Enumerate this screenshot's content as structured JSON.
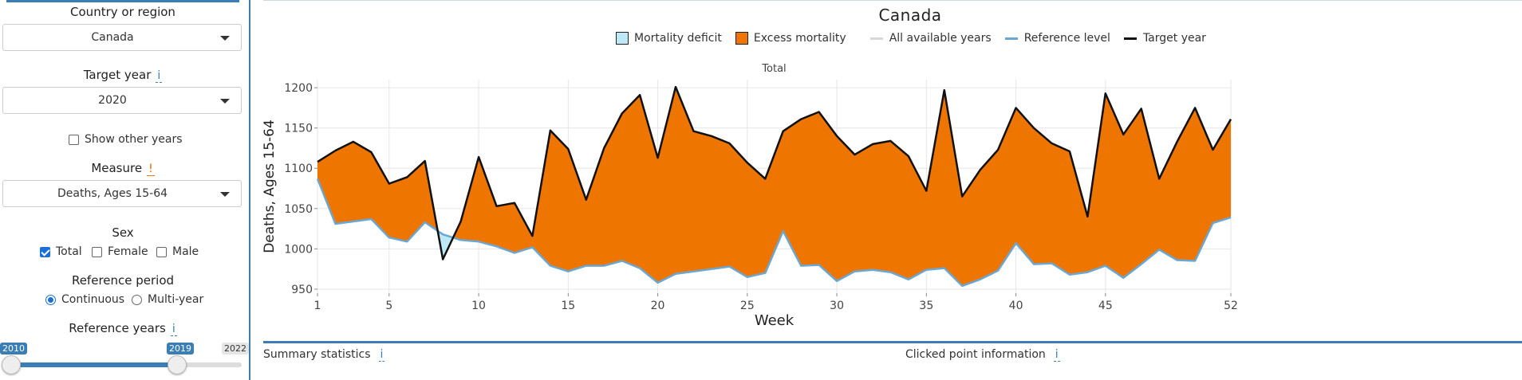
{
  "sidebar": {
    "country_label": "Country or region",
    "country_value": "Canada",
    "target_year_label": "Target year",
    "target_year_info": "i",
    "target_year_value": "2020",
    "show_other_years": "Show other years",
    "measure_label": "Measure",
    "measure_alert": "!",
    "measure_value": "Deaths, Ages 15-64",
    "sex_label": "Sex",
    "sex_options": [
      "Total",
      "Female",
      "Male"
    ],
    "sex_checked": [
      true,
      false,
      false
    ],
    "ref_period_label": "Reference period",
    "ref_period_options": [
      "Continuous",
      "Multi-year"
    ],
    "ref_period_selected": 0,
    "ref_years_label": "Reference years",
    "ref_years_info": "i",
    "ref_years_from": "2010",
    "ref_years_to": "2019",
    "ref_years_max": "2022"
  },
  "main": {
    "title": "Canada",
    "legend": {
      "deficit": "Mortality deficit",
      "excess": "Excess mortality",
      "all_years": "All available years",
      "reference": "Reference level",
      "target": "Target year"
    },
    "summary_label": "Summary statistics",
    "summary_info": "i",
    "clicked_label": "Clicked point information",
    "clicked_info": "i"
  },
  "colors": {
    "excess": "#ee7600",
    "deficit": "#bfe8f7",
    "reference": "#6aa7d3",
    "target": "#111111",
    "all_years": "#d8d8d8",
    "accent": "#3b7eb5"
  },
  "chart_data": {
    "type": "area",
    "title": "Total",
    "xlabel": "Week",
    "ylabel": "Deaths, Ages 15-64",
    "xlim": [
      1,
      52
    ],
    "ylim": [
      945,
      1210
    ],
    "x_ticks": [
      1,
      5,
      10,
      15,
      20,
      25,
      30,
      35,
      40,
      45,
      52
    ],
    "y_ticks": [
      950,
      1000,
      1050,
      1100,
      1150,
      1200
    ],
    "grid": true,
    "x": [
      1,
      2,
      3,
      4,
      5,
      6,
      7,
      8,
      9,
      10,
      11,
      12,
      13,
      14,
      15,
      16,
      17,
      18,
      19,
      20,
      21,
      22,
      23,
      24,
      25,
      26,
      27,
      28,
      29,
      30,
      31,
      32,
      33,
      34,
      35,
      36,
      37,
      38,
      39,
      40,
      41,
      42,
      43,
      44,
      45,
      46,
      47,
      48,
      49,
      50,
      51,
      52
    ],
    "series": [
      {
        "name": "Target year",
        "values": [
          1108,
          1122,
          1133,
          1120,
          1081,
          1089,
          1109,
          987,
          1034,
          1114,
          1053,
          1057,
          1016,
          1147,
          1124,
          1061,
          1125,
          1168,
          1191,
          1113,
          1201,
          1146,
          1140,
          1131,
          1107,
          1087,
          1146,
          1161,
          1170,
          1140,
          1117,
          1130,
          1134,
          1115,
          1072,
          1197,
          1065,
          1098,
          1123,
          1175,
          1150,
          1131,
          1121,
          1040,
          1193,
          1142,
          1174,
          1087,
          1133,
          1175,
          1123,
          1161
        ]
      },
      {
        "name": "Reference level",
        "values": [
          1087,
          1031,
          1034,
          1037,
          1014,
          1009,
          1033,
          1018,
          1011,
          1009,
          1003,
          995,
          1002,
          979,
          972,
          979,
          979,
          985,
          976,
          958,
          969,
          972,
          975,
          978,
          965,
          970,
          1022,
          979,
          980,
          960,
          972,
          974,
          971,
          962,
          974,
          976,
          954,
          962,
          973,
          1007,
          981,
          982,
          968,
          971,
          979,
          964,
          981,
          999,
          986,
          985,
          1032,
          1039
        ]
      }
    ]
  }
}
